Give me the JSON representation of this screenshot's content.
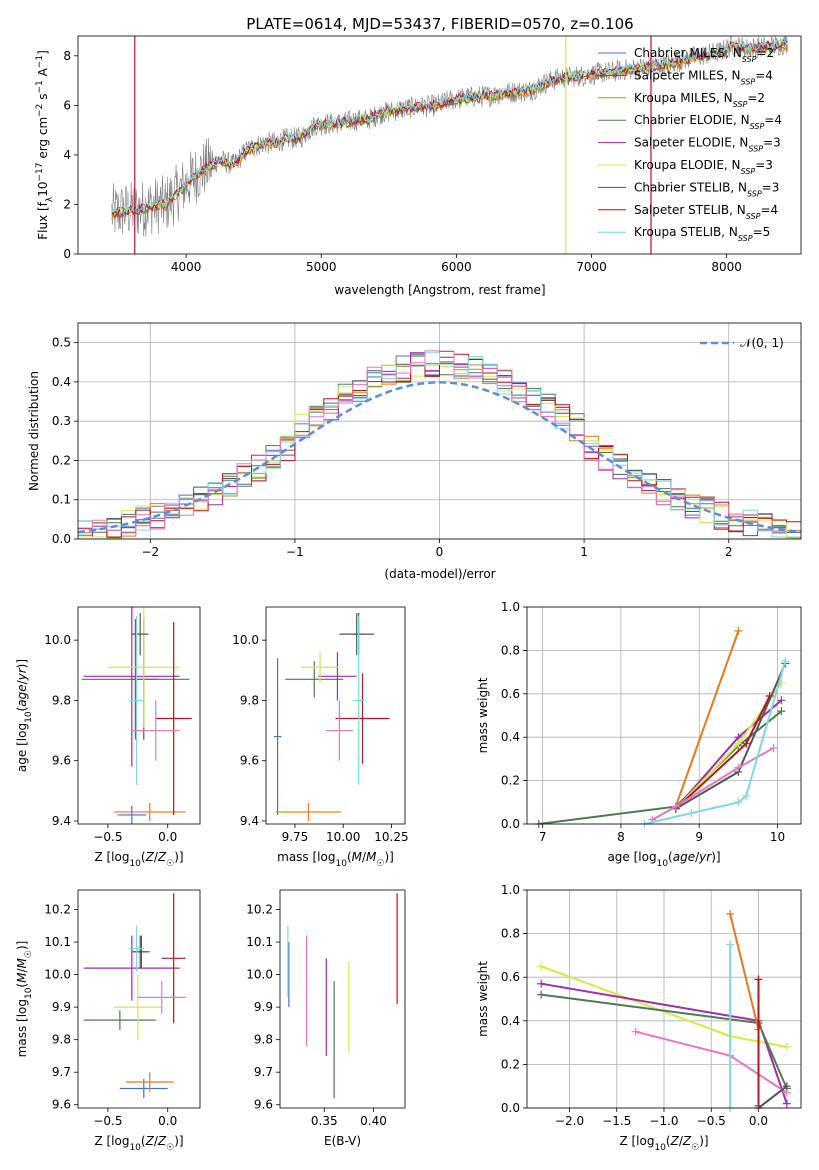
{
  "title": "PLATE=0614, MJD=53437, FIBERID=0570, z=0.106",
  "colors": {
    "Chabrier MILES": "#4c72c4",
    "Salpeter MILES": "#555555",
    "Kroupa MILES": "#e07b1f",
    "Chabrier ELODIE": "#4f7a4f",
    "Salpeter ELODIE": "#9a2fa8",
    "Kroupa ELODIE": "#d4e84a",
    "Chabrier STELIB": "#555555",
    "Salpeter STELIB": "#b0161a",
    "Kroupa STELIB": "#7fd8e0",
    "pink": "#e377c2",
    "data": "#7f7f7f",
    "normal": "#5b8fd4"
  },
  "legend_labels": [
    {
      "name": "Chabrier MILES",
      "suffix": "2"
    },
    {
      "name": "Salpeter MILES",
      "suffix": "4"
    },
    {
      "name": "Kroupa MILES",
      "suffix": "2"
    },
    {
      "name": "Chabrier ELODIE",
      "suffix": "4"
    },
    {
      "name": "Salpeter ELODIE",
      "suffix": "3"
    },
    {
      "name": "Kroupa ELODIE",
      "suffix": "3"
    },
    {
      "name": "Chabrier STELIB",
      "suffix": "3"
    },
    {
      "name": "Salpeter STELIB",
      "suffix": "4"
    },
    {
      "name": "Kroupa STELIB",
      "suffix": "5"
    }
  ],
  "chart_data": [
    {
      "id": "spectrum",
      "type": "line",
      "title": "PLATE=0614, MJD=53437, FIBERID=0570, z=0.106",
      "xlabel": "wavelength [Angstrom, rest frame]",
      "ylabel": "Flux [f_λ 10^-17 erg cm^-2 s^-1 A^-1]",
      "xlim": [
        3200,
        8550
      ],
      "ylim": [
        0,
        8.8
      ],
      "xticks": [
        4000,
        5000,
        6000,
        7000,
        8000
      ],
      "yticks": [
        0,
        2,
        4,
        6,
        8
      ],
      "model_continuum": {
        "x": [
          3450,
          3550,
          3650,
          3750,
          3850,
          3950,
          4050,
          4150,
          4250,
          4350,
          4450,
          4550,
          4650,
          4750,
          4850,
          4950,
          5050,
          5150,
          5250,
          5350,
          5450,
          5550,
          5650,
          5750,
          5850,
          5950,
          6050,
          6150,
          6250,
          6350,
          6450,
          6550,
          6650,
          6750,
          6850,
          6950,
          7050,
          7150,
          7250,
          7350,
          7450,
          7550,
          7650,
          7750,
          7850,
          7950,
          8050,
          8150,
          8250,
          8350,
          8450
        ],
        "y": [
          1.65,
          1.75,
          1.8,
          1.95,
          2.0,
          2.55,
          3.1,
          3.5,
          3.8,
          3.6,
          4.2,
          4.45,
          4.5,
          4.65,
          4.7,
          5.2,
          5.25,
          5.3,
          5.4,
          5.45,
          5.7,
          5.8,
          5.9,
          5.95,
          6.0,
          6.2,
          6.3,
          6.35,
          6.4,
          6.5,
          6.55,
          6.6,
          6.9,
          7.1,
          7.15,
          7.2,
          7.3,
          7.35,
          7.45,
          7.5,
          7.6,
          7.65,
          7.8,
          7.95,
          8.05,
          8.15,
          8.45,
          8.3,
          8.35,
          8.4,
          8.5
        ]
      }
    },
    {
      "id": "residuals",
      "type": "histogram",
      "xlabel": "(data-model)/error",
      "ylabel": "Normed distribution",
      "xlim": [
        -2.5,
        2.5
      ],
      "ylim": [
        0,
        0.55
      ],
      "xticks": [
        -2,
        -1,
        0,
        1,
        2
      ],
      "yticks": [
        0.0,
        0.1,
        0.2,
        0.3,
        0.4,
        0.5
      ],
      "bin_width": 0.1,
      "legend": "𝒩(0, 1)",
      "normal_curve": {
        "mean": 0,
        "sigma": 1
      }
    },
    {
      "id": "z_vs_age",
      "type": "scatter",
      "xlabel": "Z [log10(Z/Z☉)]",
      "ylabel": "age [log10(age/yr)]",
      "xlim": [
        -0.75,
        0.27
      ],
      "ylim": [
        9.39,
        10.11
      ],
      "xticks": [
        -0.5,
        0.0
      ],
      "yticks": [
        9.4,
        9.6,
        9.8,
        10.0
      ],
      "errorbars": [
        {
          "series": "Chabrier MILES",
          "x": -0.3,
          "xerr": 0.12,
          "y": 9.42,
          "yerr": 0.03
        },
        {
          "series": "Salpeter MILES",
          "x": -0.2,
          "xerr": 0.12,
          "y": 9.87,
          "yerr": 0.2
        },
        {
          "series": "Kroupa MILES",
          "x": -0.15,
          "xerr": 0.3,
          "y": 9.43,
          "yerr": 0.03
        },
        {
          "series": "Chabrier ELODIE",
          "x": -0.27,
          "xerr": 0.45,
          "y": 9.87,
          "yerr": 0.2
        },
        {
          "series": "Salpeter ELODIE",
          "x": -0.3,
          "xerr": 0.4,
          "y": 9.88,
          "yerr": 0.3
        },
        {
          "series": "Kroupa ELODIE",
          "x": -0.2,
          "xerr": 0.3,
          "y": 9.91,
          "yerr": 0.2
        },
        {
          "series": "Chabrier STELIB",
          "x": -0.23,
          "xerr": 0.07,
          "y": 10.02,
          "yerr": 0.07
        },
        {
          "series": "Salpeter STELIB",
          "x": 0.05,
          "xerr": 0.15,
          "y": 9.74,
          "yerr": 0.32
        },
        {
          "series": "Kroupa STELIB",
          "x": -0.26,
          "xerr": 0.06,
          "y": 9.8,
          "yerr": 0.28
        },
        {
          "series": "pink",
          "x": -0.1,
          "xerr": 0.2,
          "y": 9.7,
          "yerr": 0.1
        }
      ]
    },
    {
      "id": "mass_vs_age",
      "type": "scatter",
      "xlabel": "mass [log10(M/M☉)]",
      "ylabel": "",
      "xlim": [
        9.6,
        10.32
      ],
      "ylim": [
        9.39,
        10.11
      ],
      "xticks": [
        9.75,
        10.0,
        10.25
      ],
      "yticks": [
        9.4,
        9.6,
        9.8,
        10.0
      ],
      "errorbars": [
        {
          "series": "Chabrier MILES",
          "x": 9.66,
          "xerr": 0.02,
          "y": 9.68,
          "yerr": 0.26
        },
        {
          "series": "Salpeter MILES",
          "x": 10.07,
          "xerr": 0.09,
          "y": 10.02,
          "yerr": 0.07
        },
        {
          "series": "Kroupa MILES",
          "x": 9.82,
          "xerr": 0.17,
          "y": 9.43,
          "yerr": 0.03
        },
        {
          "series": "Chabrier ELODIE",
          "x": 9.85,
          "xerr": 0.15,
          "y": 9.87,
          "yerr": 0.06
        },
        {
          "series": "Salpeter ELODIE",
          "x": 9.97,
          "xerr": 0.1,
          "y": 9.88,
          "yerr": 0.08
        },
        {
          "series": "Kroupa ELODIE",
          "x": 9.88,
          "xerr": 0.1,
          "y": 9.91,
          "yerr": 0.05
        },
        {
          "series": "Chabrier STELIB",
          "x": 10.08,
          "xerr": 0.03,
          "y": 10.02,
          "yerr": 0.07
        },
        {
          "series": "Salpeter STELIB",
          "x": 10.1,
          "xerr": 0.14,
          "y": 9.74,
          "yerr": 0.15
        },
        {
          "series": "Kroupa STELIB",
          "x": 10.08,
          "xerr": 0.03,
          "y": 9.8,
          "yerr": 0.28
        },
        {
          "series": "pink",
          "x": 9.98,
          "xerr": 0.07,
          "y": 9.7,
          "yerr": 0.1
        }
      ]
    },
    {
      "id": "age_vs_weight",
      "type": "line",
      "xlabel": "age [log10(age/yr)]",
      "ylabel": "mass weight",
      "xlim": [
        6.8,
        10.3
      ],
      "ylim": [
        0,
        1
      ],
      "xticks": [
        7,
        8,
        9,
        10
      ],
      "yticks": [
        0.0,
        0.2,
        0.4,
        0.6,
        0.8,
        1.0
      ],
      "series": [
        {
          "name": "Chabrier ELODIE",
          "x": [
            6.95,
            8.7,
            9.5,
            10.05
          ],
          "y": [
            0.0,
            0.08,
            0.36,
            0.52
          ]
        },
        {
          "name": "Kroupa MILES",
          "x": [
            8.7,
            9.5
          ],
          "y": [
            0.08,
            0.89
          ]
        },
        {
          "name": "Salpeter ELODIE",
          "x": [
            8.7,
            9.5,
            10.05
          ],
          "y": [
            0.07,
            0.4,
            0.57
          ]
        },
        {
          "name": "Kroupa ELODIE",
          "x": [
            8.7,
            9.5,
            10.05
          ],
          "y": [
            0.07,
            0.37,
            0.65
          ]
        },
        {
          "name": "Salpeter STELIB",
          "x": [
            8.7,
            9.6,
            9.9
          ],
          "y": [
            0.07,
            0.37,
            0.59
          ]
        },
        {
          "name": "Chabrier STELIB",
          "x": [
            8.7,
            9.5,
            10.1
          ],
          "y": [
            0.07,
            0.24,
            0.74
          ]
        },
        {
          "name": "pink",
          "x": [
            8.4,
            8.7,
            9.5,
            9.95
          ],
          "y": [
            0.02,
            0.08,
            0.26,
            0.35
          ]
        },
        {
          "name": "Kroupa STELIB",
          "x": [
            8.3,
            8.9,
            9.5,
            9.6,
            10.1
          ],
          "y": [
            0.0,
            0.05,
            0.1,
            0.13,
            0.75
          ]
        }
      ]
    },
    {
      "id": "z_vs_mass",
      "type": "scatter",
      "xlabel": "Z [log10(Z/Z☉)]",
      "ylabel": "mass [log10(M/M☉)]",
      "xlim": [
        -0.75,
        0.27
      ],
      "ylim": [
        9.59,
        10.26
      ],
      "xticks": [
        -0.5,
        0.0
      ],
      "yticks": [
        9.6,
        9.7,
        9.8,
        9.9,
        10.0,
        10.1,
        10.2
      ],
      "errorbars": [
        {
          "series": "Chabrier MILES",
          "x": -0.2,
          "xerr": 0.2,
          "y": 9.65,
          "yerr": 0.03
        },
        {
          "series": "Salpeter MILES",
          "x": -0.22,
          "xerr": 0.07,
          "y": 10.07,
          "yerr": 0.05
        },
        {
          "series": "Kroupa MILES",
          "x": -0.15,
          "xerr": 0.2,
          "y": 9.67,
          "yerr": 0.03
        },
        {
          "series": "Chabrier ELODIE",
          "x": -0.4,
          "xerr": 0.3,
          "y": 9.86,
          "yerr": 0.03
        },
        {
          "series": "Salpeter ELODIE",
          "x": -0.3,
          "xerr": 0.4,
          "y": 10.02,
          "yerr": 0.1
        },
        {
          "series": "Kroupa ELODIE",
          "x": -0.25,
          "xerr": 0.2,
          "y": 9.9,
          "yerr": 0.1
        },
        {
          "series": "Chabrier STELIB",
          "x": -0.23,
          "xerr": 0.07,
          "y": 10.07,
          "yerr": 0.05
        },
        {
          "series": "Salpeter STELIB",
          "x": 0.05,
          "xerr": 0.1,
          "y": 10.05,
          "yerr": 0.2
        },
        {
          "series": "Kroupa STELIB",
          "x": -0.26,
          "xerr": 0.06,
          "y": 10.08,
          "yerr": 0.07
        },
        {
          "series": "pink",
          "x": -0.05,
          "xerr": 0.2,
          "y": 9.93,
          "yerr": 0.05
        }
      ]
    },
    {
      "id": "ebv_vs_mass",
      "type": "scatter",
      "xlabel": "E(B-V)",
      "ylabel": "",
      "xlim": [
        0.305,
        0.432
      ],
      "ylim": [
        9.59,
        10.26
      ],
      "xticks": [
        0.35,
        0.4
      ],
      "yticks": [
        9.6,
        9.7,
        9.8,
        9.9,
        10.0,
        10.1,
        10.2
      ],
      "errorbars": [
        {
          "series": "Chabrier MILES",
          "x": 0.314,
          "xerr": 0,
          "y": 10.0,
          "yerr": 0.1
        },
        {
          "series": "Kroupa STELIB",
          "x": 0.313,
          "xerr": 0,
          "y": 10.04,
          "yerr": 0.11
        },
        {
          "series": "pink",
          "x": 0.332,
          "xerr": 0,
          "y": 9.95,
          "yerr": 0.17
        },
        {
          "series": "Salpeter ELODIE",
          "x": 0.352,
          "xerr": 0,
          "y": 9.9,
          "yerr": 0.15
        },
        {
          "series": "Chabrier ELODIE",
          "x": 0.36,
          "xerr": 0,
          "y": 9.8,
          "yerr": 0.18
        },
        {
          "series": "Kroupa ELODIE",
          "x": 0.375,
          "xerr": 0,
          "y": 9.9,
          "yerr": 0.14
        },
        {
          "series": "Salpeter STELIB",
          "x": 0.424,
          "xerr": 0,
          "y": 10.08,
          "yerr": 0.17
        }
      ]
    },
    {
      "id": "z_vs_weight",
      "type": "line",
      "xlabel": "Z [log10(Z/Z☉)]",
      "ylabel": "mass weight",
      "xlim": [
        -2.45,
        0.45
      ],
      "ylim": [
        0,
        1
      ],
      "xticks": [
        -2.0,
        -1.5,
        -1.0,
        -0.5,
        0.0
      ],
      "yticks": [
        0.0,
        0.2,
        0.4,
        0.6,
        0.8,
        1.0
      ],
      "series": [
        {
          "name": "Kroupa ELODIE",
          "x": [
            -2.3,
            -0.3,
            0.3
          ],
          "y": [
            0.65,
            0.33,
            0.28
          ]
        },
        {
          "name": "Salpeter ELODIE",
          "x": [
            -2.3,
            0.0,
            0.3
          ],
          "y": [
            0.57,
            0.4,
            0.02
          ]
        },
        {
          "name": "Chabrier ELODIE",
          "x": [
            -2.3,
            0.0,
            0.3
          ],
          "y": [
            0.52,
            0.39,
            0.09
          ]
        },
        {
          "name": "pink",
          "x": [
            -1.3,
            -0.3,
            0.3
          ],
          "y": [
            0.35,
            0.24,
            0.07
          ]
        },
        {
          "name": "Kroupa MILES",
          "x": [
            -0.3,
            0.0
          ],
          "y": [
            0.89,
            0.36
          ]
        },
        {
          "name": "Salpeter STELIB",
          "x": [
            0.0,
            0.0
          ],
          "y": [
            0.59,
            0.01
          ]
        },
        {
          "name": "Kroupa STELIB",
          "x": [
            -0.3,
            -0.3
          ],
          "y": [
            0.75,
            0.0
          ]
        },
        {
          "name": "Chabrier STELIB",
          "x": [
            0.0,
            0.3
          ],
          "y": [
            0.0,
            0.1
          ]
        }
      ]
    }
  ]
}
